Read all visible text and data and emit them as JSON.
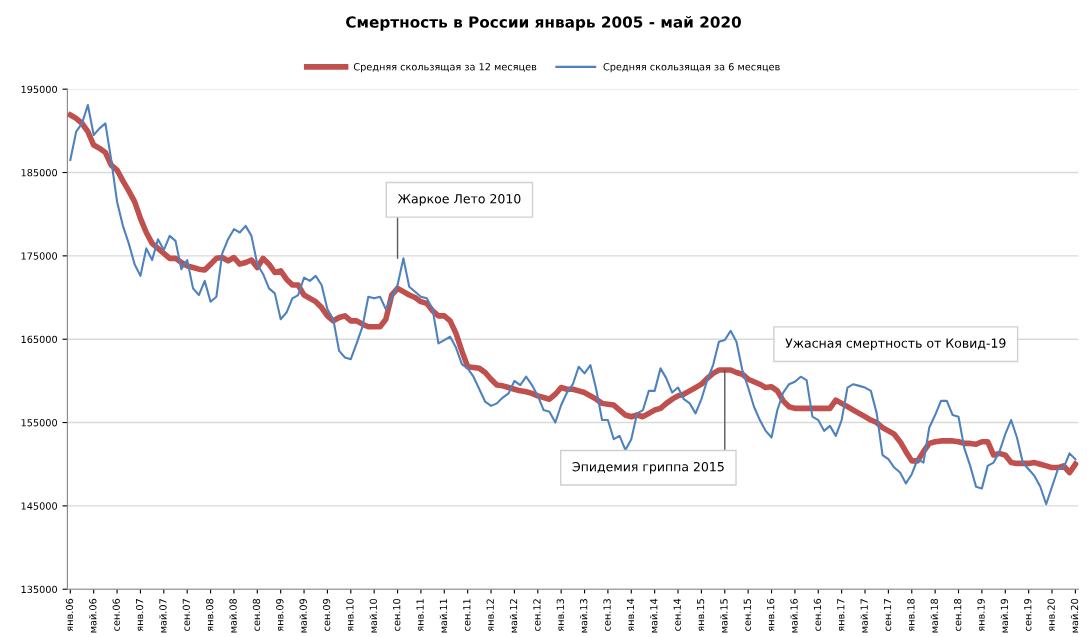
{
  "chart_data": {
    "type": "line",
    "title": "Смертность в России январь 2005 - май 2020",
    "categories": [
      "янв.06",
      null,
      null,
      null,
      "май.06",
      null,
      null,
      null,
      "сен.06",
      null,
      null,
      null,
      "янв.07",
      null,
      null,
      null,
      "май.07",
      null,
      null,
      null,
      "сен.07",
      null,
      null,
      null,
      "янв.08",
      null,
      null,
      null,
      "май.08",
      null,
      null,
      null,
      "сен.08",
      null,
      null,
      null,
      "янв.09",
      null,
      null,
      null,
      "май.09",
      null,
      null,
      null,
      "сен.09",
      null,
      null,
      null,
      "янв.10",
      null,
      null,
      null,
      "май.10",
      null,
      null,
      null,
      "сен.10",
      null,
      null,
      null,
      "янв.11",
      null,
      null,
      null,
      "май.11",
      null,
      null,
      null,
      "сен.11",
      null,
      null,
      null,
      "янв.12",
      null,
      null,
      null,
      "май.12",
      null,
      null,
      null,
      "сен.12",
      null,
      null,
      null,
      "янв.13",
      null,
      null,
      null,
      "май.13",
      null,
      null,
      null,
      "сен.13",
      null,
      null,
      null,
      "янв.14",
      null,
      null,
      null,
      "май.14",
      null,
      null,
      null,
      "сен.14",
      null,
      null,
      null,
      "янв.15",
      null,
      null,
      null,
      "май.15",
      null,
      null,
      null,
      "сен.15",
      null,
      null,
      null,
      "янв.16",
      null,
      null,
      null,
      "май.16",
      null,
      null,
      null,
      "сен.16",
      null,
      null,
      null,
      "янв.17",
      null,
      null,
      null,
      "май.17",
      null,
      null,
      null,
      "сен.17",
      null,
      null,
      null,
      "янв.18",
      null,
      null,
      null,
      "май.18",
      null,
      null,
      null,
      "сен.18",
      null,
      null,
      null,
      "янв.19",
      null,
      null,
      null,
      "май.19",
      null,
      null,
      null,
      "сен.19",
      null,
      null,
      null,
      "янв.20",
      null,
      null,
      null,
      "май.20"
    ],
    "series": [
      {
        "name": "Средняя скользящая за 12 месяцев",
        "color": "#c0504d",
        "values": [
          191900,
          191500,
          190900,
          189900,
          188300,
          187900,
          187400,
          185900,
          185300,
          184000,
          182800,
          181500,
          179500,
          177800,
          176500,
          175900,
          175300,
          174700,
          174700,
          174200,
          173800,
          173600,
          173400,
          173300,
          174000,
          174700,
          174800,
          174400,
          174800,
          174000,
          174200,
          174500,
          173600,
          174700,
          174000,
          173000,
          173200,
          172200,
          171500,
          171500,
          170300,
          169900,
          169500,
          168800,
          167800,
          167200,
          167600,
          167800,
          167200,
          167200,
          166800,
          166500,
          166500,
          166500,
          167400,
          170300,
          171100,
          170700,
          170300,
          170000,
          169500,
          169300,
          168400,
          167800,
          167800,
          167200,
          165700,
          163600,
          161700,
          161600,
          161500,
          161000,
          160200,
          159500,
          159400,
          159200,
          159000,
          158800,
          158700,
          158500,
          158200,
          158000,
          157800,
          158400,
          159200,
          159000,
          159000,
          158800,
          158600,
          158200,
          157800,
          157300,
          157200,
          157100,
          156500,
          155900,
          155700,
          155900,
          155700,
          156100,
          156500,
          156700,
          157300,
          157800,
          158200,
          158400,
          158800,
          159200,
          159600,
          160300,
          160900,
          161300,
          161300,
          161300,
          161000,
          160800,
          160200,
          159900,
          159600,
          159200,
          159300,
          158800,
          157600,
          156900,
          156700,
          156700,
          156700,
          156700,
          156700,
          156700,
          156700,
          157700,
          157300,
          156900,
          156500,
          156100,
          155700,
          155300,
          155000,
          154400,
          154000,
          153600,
          152700,
          151500,
          150400,
          150400,
          151500,
          152500,
          152700,
          152800,
          152800,
          152800,
          152700,
          152500,
          152500,
          152400,
          152700,
          152700,
          151100,
          151300,
          151100,
          150200,
          150100,
          150100,
          150100,
          150200,
          150000,
          149800,
          149600,
          149600,
          149800,
          149000,
          150000
        ]
      },
      {
        "name": "Средняя скользящая за 6 месяцев",
        "color": "#4f81bd",
        "values": [
          186500,
          189900,
          190900,
          193100,
          189500,
          190300,
          190900,
          186500,
          181500,
          178600,
          176500,
          174000,
          172600,
          175900,
          174500,
          177000,
          175700,
          177400,
          176800,
          173400,
          174500,
          171100,
          170300,
          172000,
          169500,
          170100,
          175300,
          177000,
          178200,
          177800,
          178600,
          177400,
          174000,
          172800,
          171100,
          170500,
          167400,
          168200,
          169900,
          170300,
          172400,
          172000,
          172600,
          171500,
          168600,
          167400,
          163600,
          162800,
          162600,
          164500,
          166500,
          170100,
          169900,
          170100,
          168600,
          169900,
          171500,
          174700,
          171300,
          170700,
          170100,
          169900,
          168600,
          164500,
          164900,
          165300,
          164000,
          162000,
          161500,
          160500,
          159000,
          157500,
          157000,
          157300,
          158000,
          158500,
          160000,
          159500,
          160500,
          159500,
          158200,
          156500,
          156300,
          155000,
          157100,
          158600,
          159600,
          161700,
          160900,
          161900,
          159000,
          155300,
          155300,
          153000,
          153400,
          151700,
          153000,
          156100,
          156500,
          158800,
          158800,
          161500,
          160300,
          158600,
          159200,
          157800,
          157300,
          156100,
          157800,
          160100,
          161900,
          164700,
          164900,
          166000,
          164700,
          161300,
          159200,
          156900,
          155300,
          154000,
          153200,
          156500,
          158600,
          159600,
          159900,
          160500,
          160100,
          155700,
          155300,
          154000,
          154600,
          153400,
          155300,
          159200,
          159600,
          159400,
          159200,
          158800,
          156100,
          151100,
          150600,
          149600,
          149000,
          147700,
          148800,
          150600,
          150200,
          154400,
          155900,
          157600,
          157600,
          155900,
          155700,
          151900,
          149800,
          147300,
          147100,
          149800,
          150200,
          151500,
          153600,
          155300,
          153200,
          150200,
          149400,
          148600,
          147300,
          145200,
          147300,
          149400,
          149600,
          151300,
          150600
        ]
      }
    ],
    "ylim": [
      135000,
      195000
    ],
    "yticks": [
      135000,
      145000,
      155000,
      165000,
      175000,
      185000,
      195000
    ],
    "grid": "y",
    "legend": "top",
    "marker": "none",
    "line_style": "solid",
    "annotations": [
      {
        "text": "Жаркое Лето 2010",
        "x": "сен.10",
        "y": 174700
      },
      {
        "text": "Эпидемия гриппа 2015",
        "x": "май.15",
        "y": 161300
      },
      "Ужасная смертность от Ковид-19"
    ]
  }
}
